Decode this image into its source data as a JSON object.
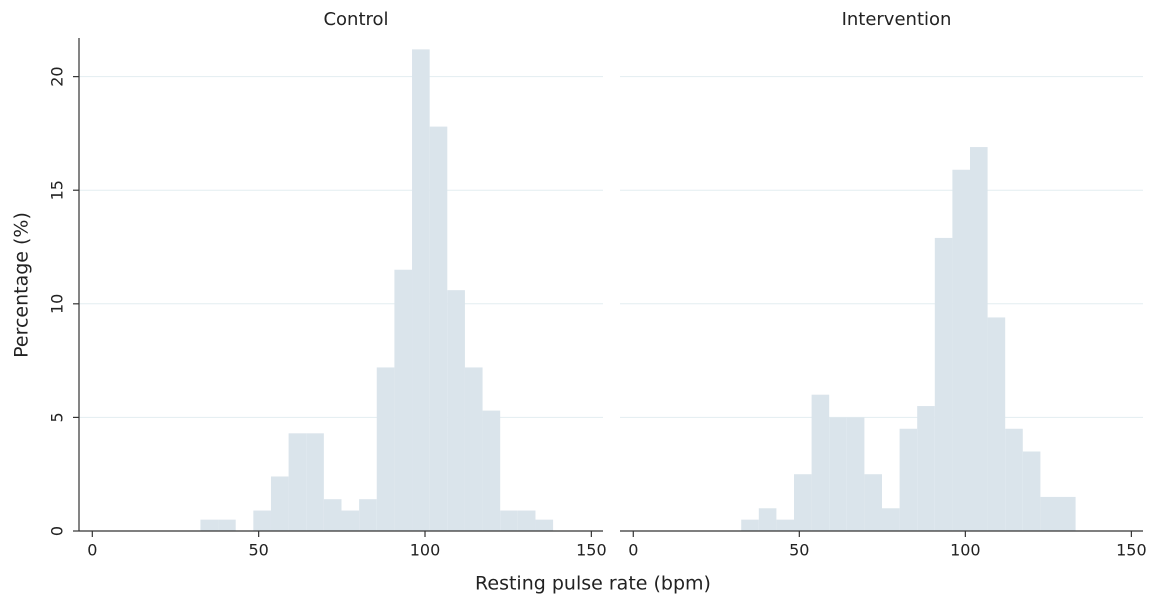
{
  "chart_data": [
    {
      "type": "histogram",
      "title": "Control",
      "xlabel": "Resting pulse rate (bpm)",
      "ylabel": "Percentage (%)",
      "bins": [
        32.5,
        37.8,
        43.1,
        48.4,
        53.7,
        59,
        64.3,
        69.6,
        74.9,
        80.2,
        85.5,
        90.8,
        96.1,
        101.4,
        106.7,
        112,
        117.3,
        122.6,
        127.9,
        133.2,
        138.5
      ],
      "values": [
        0.5,
        0.5,
        0,
        0.9,
        2.4,
        4.3,
        4.3,
        1.4,
        0.9,
        1.4,
        7.2,
        11.5,
        21.2,
        17.8,
        10.6,
        7.2,
        5.3,
        0.9,
        0.9,
        0.5
      ],
      "color": "#dae4eb",
      "xlim": [
        -4,
        153.5
      ],
      "ylim": [
        0,
        21.7
      ],
      "xticks": [
        0,
        50,
        100,
        150
      ],
      "yticks": [
        0,
        5,
        10,
        15,
        20
      ],
      "grid": true
    },
    {
      "type": "histogram",
      "title": "Intervention",
      "bins": [
        32.5,
        37.8,
        43.1,
        48.4,
        53.7,
        59,
        64.3,
        69.6,
        74.9,
        80.2,
        85.5,
        90.8,
        96.1,
        101.4,
        106.7,
        112,
        117.3,
        122.6,
        127.9,
        133.2
      ],
      "values": [
        0.5,
        1.0,
        0.5,
        2.5,
        6.0,
        5.0,
        5.0,
        2.5,
        1.0,
        4.5,
        5.5,
        12.9,
        15.9,
        16.9,
        9.4,
        4.5,
        3.5,
        1.5,
        1.5
      ],
      "color": "#dae4eb",
      "xlim": [
        -4,
        153.5
      ],
      "ylim": [
        0,
        21.7
      ],
      "xticks": [
        0,
        50,
        100,
        150
      ],
      "yticks": [
        0,
        5,
        10,
        15,
        20
      ],
      "grid": true
    }
  ]
}
